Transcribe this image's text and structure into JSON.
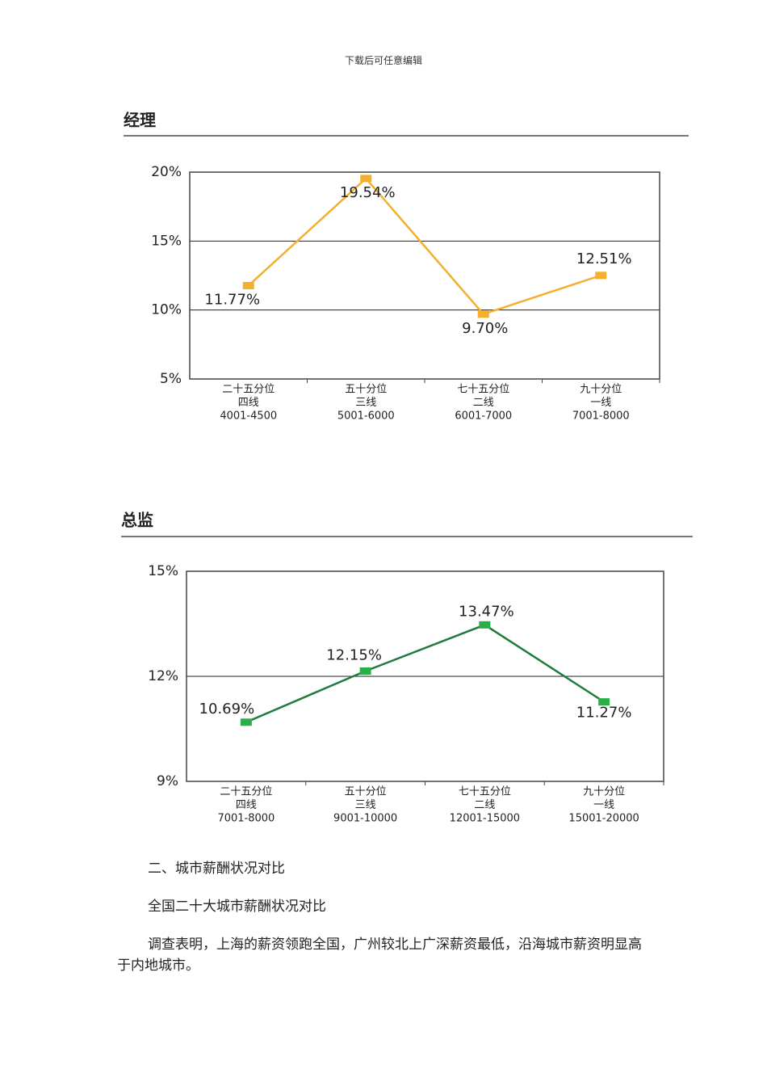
{
  "header": {
    "note": "下载后可任意编辑"
  },
  "chart_data": [
    {
      "type": "line",
      "title": "经理",
      "categories": [
        [
          "二十五分位",
          "四线",
          "4001-4500"
        ],
        [
          "五十分位",
          "三线",
          "5001-6000"
        ],
        [
          "七十五分位",
          "二线",
          "6001-7000"
        ],
        [
          "九十分位",
          "一线",
          "7001-8000"
        ]
      ],
      "values": [
        11.77,
        19.54,
        9.7,
        12.51
      ],
      "value_labels": [
        "11.77%",
        "19.54%",
        "9.70%",
        "12.51%"
      ],
      "color": "#f3b02e",
      "ylim": [
        5,
        20
      ],
      "yticks": [
        {
          "value": 5,
          "label": "5%"
        },
        {
          "value": 10,
          "label": "10%"
        },
        {
          "value": 15,
          "label": "15%"
        },
        {
          "value": 20,
          "label": "20%"
        }
      ],
      "grid": true
    },
    {
      "type": "line",
      "title": "总监",
      "categories": [
        [
          "二十五分位",
          "四线",
          "7001-8000"
        ],
        [
          "五十分位",
          "三线",
          "9001-10000"
        ],
        [
          "七十五分位",
          "二线",
          "12001-15000"
        ],
        [
          "九十分位",
          "一线",
          "15001-20000"
        ]
      ],
      "values": [
        10.69,
        12.15,
        13.47,
        11.27
      ],
      "value_labels": [
        "10.69%",
        "12.15%",
        "13.47%",
        "11.27%"
      ],
      "color": "#1f7a3c",
      "marker_color": "#2aae48",
      "ylim": [
        9,
        15
      ],
      "yticks": [
        {
          "value": 9,
          "label": "9%"
        },
        {
          "value": 12,
          "label": "12%"
        },
        {
          "value": 15,
          "label": "15%"
        }
      ],
      "grid": true
    }
  ],
  "body": {
    "paragraphs": [
      "二、城市薪酬状况对比",
      "全国二十大城市薪酬状况对比",
      "调查表明，上海的薪资领跑全国，广州较北上广深薪资最低，沿海城市薪资明显高于内地城市。"
    ]
  }
}
